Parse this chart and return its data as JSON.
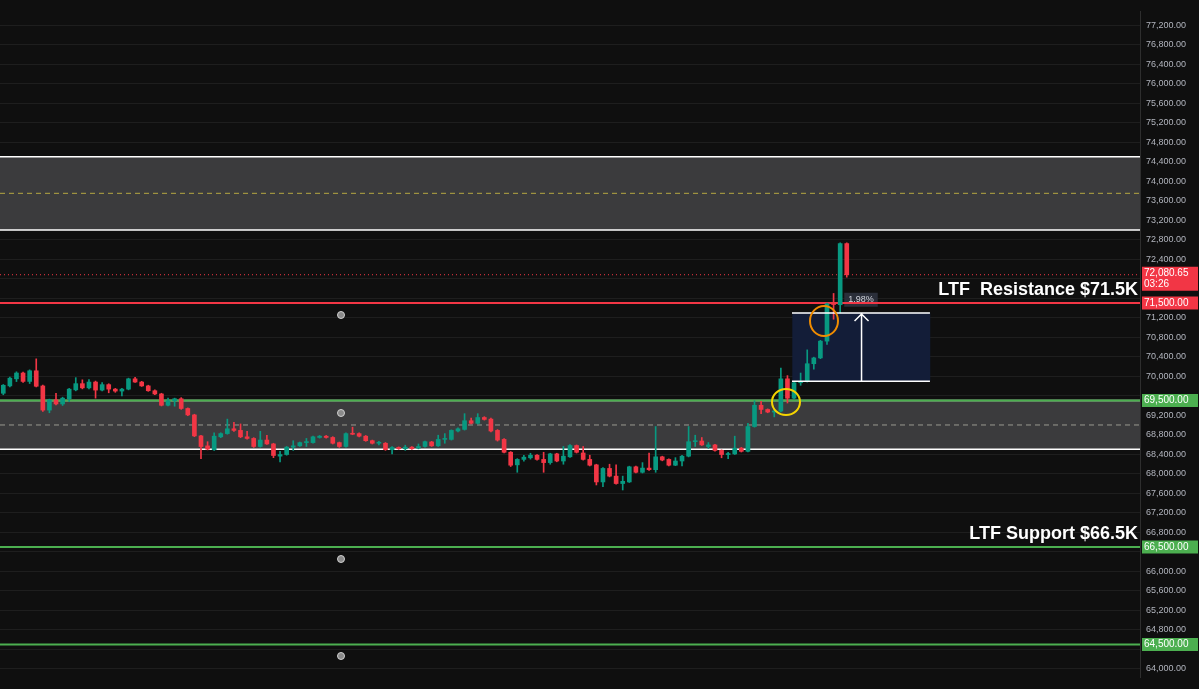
{
  "chart_data": {
    "type": "candlestick",
    "categories": [
      null,
      null,
      null,
      null,
      null,
      null,
      null,
      null,
      null,
      null,
      null,
      null,
      null,
      null,
      null,
      null,
      null,
      null,
      null,
      null,
      null,
      null,
      null,
      null,
      null,
      null,
      null,
      null,
      null,
      null,
      null,
      null,
      null,
      null,
      null,
      null,
      null,
      null,
      null,
      null,
      null,
      null,
      null,
      null,
      null,
      null,
      null,
      null,
      null,
      null,
      null,
      null,
      null,
      null,
      null,
      null,
      null,
      null,
      null,
      null,
      null,
      null,
      null,
      null,
      null,
      null,
      null,
      null,
      null,
      null,
      null,
      null,
      null,
      null,
      null,
      null,
      null,
      null,
      null,
      null,
      null,
      null,
      null,
      null,
      null,
      null,
      null,
      null,
      null,
      null,
      null,
      null,
      null,
      null,
      null,
      null,
      null,
      null,
      null,
      null,
      null,
      null,
      null,
      null,
      null,
      null,
      null,
      null,
      null,
      null,
      null,
      null,
      null,
      null,
      null,
      null,
      null,
      null,
      null,
      null,
      null,
      null,
      null,
      null,
      null,
      null,
      null,
      null,
      null,
      null,
      null,
      null,
      null,
      null,
      null,
      null,
      null,
      null,
      null,
      null,
      null,
      null,
      null,
      null,
      null,
      null,
      null,
      null,
      null,
      null,
      null,
      null,
      null,
      null,
      null,
      null,
      null,
      null,
      null,
      null,
      null,
      null,
      null,
      null,
      null,
      null,
      null,
      null,
      null,
      null,
      null,
      null,
      null
    ],
    "ohlc": [
      [
        69650,
        69830,
        69620,
        69814
      ],
      [
        69801,
        69980,
        69780,
        69959
      ],
      [
        69946,
        70090,
        69890,
        70065
      ],
      [
        70065,
        70085,
        69870,
        69893
      ],
      [
        69893,
        70130,
        69850,
        70111
      ],
      [
        70111,
        70356,
        69780,
        69794
      ],
      [
        69800,
        69820,
        69280,
        69305
      ],
      [
        69305,
        69530,
        69250,
        69516
      ],
      [
        69516,
        69650,
        69410,
        69431
      ],
      [
        69431,
        69570,
        69400,
        69550
      ],
      [
        69536,
        69750,
        69480,
        69735
      ],
      [
        69720,
        69970,
        69700,
        69847
      ],
      [
        69847,
        69926,
        69740,
        69761
      ],
      [
        69761,
        69930,
        69740,
        69880
      ],
      [
        69880,
        69900,
        69550,
        69715
      ],
      [
        69715,
        69870,
        69700,
        69827
      ],
      [
        69827,
        69845,
        69660,
        69735
      ],
      [
        69735,
        69750,
        69670,
        69695
      ],
      [
        69695,
        69750,
        69596,
        69735
      ],
      [
        69735,
        69960,
        69720,
        69946
      ],
      [
        69946,
        69979,
        69870,
        69880
      ],
      [
        69880,
        69895,
        69790,
        69801
      ],
      [
        69801,
        69815,
        69690,
        69702
      ],
      [
        69702,
        69720,
        69620,
        69636
      ],
      [
        69636,
        69650,
        69390,
        69404
      ],
      [
        69404,
        69550,
        69390,
        69497
      ],
      [
        69497,
        69550,
        69385,
        69537
      ],
      [
        69537,
        69560,
        69320,
        69338
      ],
      [
        69338,
        69350,
        69190,
        69206
      ],
      [
        69206,
        69220,
        68760,
        68776
      ],
      [
        68776,
        68790,
        68307,
        68558
      ],
      [
        68571,
        68657,
        68490,
        68505
      ],
      [
        68492,
        68840,
        68480,
        68770
      ],
      [
        68757,
        68840,
        68740,
        68823
      ],
      [
        68823,
        69120,
        68810,
        68922
      ],
      [
        68922,
        69054,
        68870,
        68889
      ],
      [
        68889,
        69021,
        68740,
        68757
      ],
      [
        68757,
        68870,
        68710,
        68724
      ],
      [
        68724,
        68740,
        68540,
        68559
      ],
      [
        68559,
        68870,
        68545,
        68691
      ],
      [
        68691,
        68790,
        68600,
        68611
      ],
      [
        68611,
        68625,
        68330,
        68374
      ],
      [
        68361,
        68460,
        68242,
        68394
      ],
      [
        68394,
        68560,
        68380,
        68545
      ],
      [
        68545,
        68677,
        68479,
        68572
      ],
      [
        68572,
        68650,
        68560,
        68638
      ],
      [
        68638,
        68724,
        68559,
        68658
      ],
      [
        68638,
        68770,
        68625,
        68757
      ],
      [
        68744,
        68785,
        68730,
        68770
      ],
      [
        68770,
        68785,
        68730,
        68744
      ],
      [
        68744,
        68760,
        68610,
        68625
      ],
      [
        68638,
        68650,
        68540,
        68559
      ],
      [
        68559,
        68840,
        68545,
        68823
      ],
      [
        68830,
        68955,
        68800,
        68810
      ],
      [
        68823,
        68840,
        68755,
        68770
      ],
      [
        68770,
        68785,
        68665,
        68678
      ],
      [
        68678,
        68690,
        68610,
        68625
      ],
      [
        68625,
        68665,
        68590,
        68638
      ],
      [
        68625,
        68640,
        68480,
        68493
      ],
      [
        68493,
        68555,
        68407,
        68539
      ],
      [
        68539,
        68550,
        68500,
        68512
      ],
      [
        68512,
        68585,
        68480,
        68545
      ],
      [
        68545,
        68555,
        68500,
        68512
      ],
      [
        68525,
        68610,
        68510,
        68559
      ],
      [
        68559,
        68670,
        68545,
        68658
      ],
      [
        68651,
        68665,
        68560,
        68572
      ],
      [
        68572,
        68790,
        68560,
        68704
      ],
      [
        68704,
        68823,
        68625,
        68724
      ],
      [
        68704,
        68900,
        68690,
        68889
      ],
      [
        68876,
        68940,
        68860,
        68922
      ],
      [
        68909,
        69232,
        68895,
        69087
      ],
      [
        69087,
        69140,
        69020,
        69034
      ],
      [
        69034,
        69232,
        69020,
        69153
      ],
      [
        69153,
        69170,
        69100,
        69114
      ],
      [
        69120,
        69140,
        68860,
        68876
      ],
      [
        68889,
        68905,
        68670,
        68691
      ],
      [
        68704,
        68720,
        68425,
        68440
      ],
      [
        68440,
        68455,
        68148,
        68175
      ],
      [
        68182,
        68310,
        68030,
        68294
      ],
      [
        68294,
        68380,
        68260,
        68340
      ],
      [
        68327,
        68420,
        68300,
        68380
      ],
      [
        68380,
        68395,
        68280,
        68294
      ],
      [
        68294,
        68440,
        68030,
        68228
      ],
      [
        68228,
        68420,
        68195,
        68407
      ],
      [
        68407,
        68420,
        68245,
        68261
      ],
      [
        68261,
        68559,
        68195,
        68360
      ],
      [
        68347,
        68600,
        68335,
        68578
      ],
      [
        68578,
        68590,
        68425,
        68440
      ],
      [
        68426,
        68559,
        68280,
        68294
      ],
      [
        68294,
        68380,
        68160,
        68175
      ],
      [
        68182,
        68195,
        67770,
        67832
      ],
      [
        67832,
        68125,
        67733,
        68109
      ],
      [
        68109,
        68195,
        67935,
        67951
      ],
      [
        67951,
        68182,
        67785,
        67799
      ],
      [
        67799,
        67951,
        67667,
        67845
      ],
      [
        67832,
        68155,
        67820,
        68142
      ],
      [
        68142,
        68155,
        68015,
        68030
      ],
      [
        68030,
        68228,
        68015,
        68116
      ],
      [
        68116,
        68426,
        68070,
        68083
      ],
      [
        68083,
        68968,
        68030,
        68347
      ],
      [
        68347,
        68360,
        68265,
        68281
      ],
      [
        68294,
        68305,
        68160,
        68175
      ],
      [
        68175,
        68330,
        68165,
        68261
      ],
      [
        68261,
        68375,
        68162,
        68360
      ],
      [
        68360,
        68968,
        68345,
        68657
      ],
      [
        68657,
        68790,
        68559,
        68671
      ],
      [
        68671,
        68743,
        68580,
        68591
      ],
      [
        68558,
        68640,
        68520,
        68591
      ],
      [
        68591,
        68605,
        68465,
        68479
      ],
      [
        68479,
        68490,
        68327,
        68393
      ],
      [
        68393,
        68440,
        68307,
        68413
      ],
      [
        68406,
        68770,
        68395,
        68525
      ],
      [
        68525,
        68540,
        68445,
        68459
      ],
      [
        68459,
        69034,
        68445,
        68968
      ],
      [
        68968,
        69497,
        68955,
        69404
      ],
      [
        69404,
        69483,
        69232,
        69318
      ],
      [
        69318,
        69330,
        69250,
        69265
      ],
      [
        69265,
        69300,
        69166,
        69285
      ],
      [
        69285,
        70164,
        69270,
        69946
      ],
      [
        69946,
        70012,
        69450,
        69549
      ],
      [
        69549,
        69880,
        69535,
        69866
      ],
      [
        69866,
        70065,
        69814,
        69893
      ],
      [
        69893,
        70540,
        69880,
        70256
      ],
      [
        70256,
        70390,
        70144,
        70375
      ],
      [
        70375,
        70735,
        70360,
        70719
      ],
      [
        70719,
        71500,
        70650,
        71485
      ],
      [
        71485,
        71697,
        71168,
        71470
      ],
      [
        71465,
        72735,
        71300,
        72721
      ],
      [
        72721,
        72735,
        72030,
        72081
      ],
      null,
      null,
      null,
      null,
      null,
      null,
      null,
      null,
      null,
      null,
      null,
      null,
      null,
      null,
      null,
      null,
      null,
      null,
      null,
      null,
      null,
      null,
      null,
      null,
      null,
      null,
      null,
      null,
      null,
      null,
      null,
      null,
      null,
      null,
      null,
      null,
      null,
      null,
      null,
      null,
      null,
      null,
      null,
      null
    ],
    "colors": [
      "#089981",
      "#089981",
      "#089981",
      "#f23645",
      "#089981",
      "#f23645",
      "#f23645",
      "#089981",
      "#f23645",
      "#089981",
      "#089981",
      "#089981",
      "#f23645",
      "#089981",
      "#f23645",
      "#089981",
      "#f23645",
      "#f23645",
      "#089981",
      "#089981",
      "#f23645",
      "#f23645",
      "#f23645",
      "#f23645",
      "#f23645",
      "#089981",
      "#089981",
      "#f23645",
      "#f23645",
      "#f23645",
      "#f23645",
      "#f23645",
      "#089981",
      "#089981",
      "#089981",
      "#f23645",
      "#f23645",
      "#f23645",
      "#f23645",
      "#089981",
      "#f23645",
      "#f23645",
      "#089981",
      "#089981",
      "#089981",
      "#089981",
      "#089981",
      "#089981",
      "#089981",
      "#f23645",
      "#f23645",
      "#f23645",
      "#089981",
      "#f23645",
      "#f23645",
      "#f23645",
      "#f23645",
      "#089981",
      "#f23645",
      "#089981",
      "#f23645",
      "#089981",
      "#f23645",
      "#089981",
      "#089981",
      "#f23645",
      "#089981",
      "#089981",
      "#089981",
      "#089981",
      "#089981",
      "#f23645",
      "#089981",
      "#f23645",
      "#f23645",
      "#f23645",
      "#f23645",
      "#f23645",
      "#089981",
      "#089981",
      "#089981",
      "#f23645",
      "#f23645",
      "#089981",
      "#f23645",
      "#089981",
      "#089981",
      "#f23645",
      "#f23645",
      "#f23645",
      "#f23645",
      "#089981",
      "#f23645",
      "#f23645",
      "#089981",
      "#089981",
      "#f23645",
      "#089981",
      "#f23645",
      "#089981",
      "#f23645",
      "#f23645",
      "#089981",
      "#089981",
      "#089981",
      "#089981",
      "#f23645",
      "#089981",
      "#f23645",
      "#f23645",
      "#089981",
      "#089981",
      "#f23645",
      "#089981",
      "#089981",
      "#f23645",
      "#f23645",
      "#089981",
      "#089981",
      "#f23645",
      "#089981",
      "#089981",
      "#089981",
      "#089981",
      "#089981",
      "#089981",
      "#f23645",
      "#089981",
      "#f23645",
      null,
      null,
      null,
      null,
      null,
      null,
      null,
      null,
      null,
      null,
      null,
      null,
      null,
      null,
      null,
      null,
      null,
      null,
      null,
      null,
      null,
      null,
      null,
      null,
      null,
      null,
      null,
      null,
      null,
      null,
      null,
      null,
      null,
      null,
      null,
      null,
      null,
      null,
      null,
      null,
      null,
      null,
      null,
      null
    ],
    "annotations": [
      {
        "text": "LTF  Resistance $71.5K",
        "y": 71500
      },
      "03:26",
      {
        "text": "LTF Support $66.5K",
        "y": 66500
      }
    ],
    "ylim": [
      63820,
      77480
    ],
    "yticks": [
      {
        "value": 64000,
        "label": "64,000.00"
      },
      {
        "value": 64400,
        "label": null
      },
      {
        "value": 64800,
        "label": "64,800.00"
      },
      {
        "value": 65200,
        "label": "65,200.00"
      },
      {
        "value": 65600,
        "label": "65,600.00"
      },
      {
        "value": 66000,
        "label": "66,000.00"
      },
      {
        "value": 66400,
        "label": null
      },
      {
        "value": 66800,
        "label": "66,800.00"
      },
      {
        "value": 67200,
        "label": "67,200.00"
      },
      {
        "value": 67600,
        "label": "67,600.00"
      },
      {
        "value": 68000,
        "label": "68,000.00"
      },
      {
        "value": 68400,
        "label": "68,400.00"
      },
      {
        "value": 68800,
        "label": "68,800.00"
      },
      {
        "value": 69200,
        "label": "69,200.00"
      },
      {
        "value": 69600,
        "label": null
      },
      {
        "value": 70000,
        "label": "70,000.00"
      },
      {
        "value": 70400,
        "label": "70,400.00"
      },
      {
        "value": 70800,
        "label": "70,800.00"
      },
      {
        "value": 71200,
        "label": "71,200.00"
      },
      {
        "value": 71600,
        "label": null
      },
      {
        "value": 72000,
        "label": null
      },
      {
        "value": 72400,
        "label": "72,400.00"
      },
      {
        "value": 72800,
        "label": "72,800.00"
      },
      {
        "value": 73200,
        "label": "73,200.00"
      },
      {
        "value": 73600,
        "label": "73,600.00"
      },
      {
        "value": 74000,
        "label": "74,000.00"
      },
      {
        "value": 74400,
        "label": "74,400.00"
      },
      {
        "value": 74800,
        "label": "74,800.00"
      },
      {
        "value": 75200,
        "label": "75,200.00"
      },
      {
        "value": 75600,
        "label": "75,600.00"
      },
      {
        "value": 76000,
        "label": "76,000.00"
      },
      {
        "value": 76400,
        "label": "76,400.00"
      },
      {
        "value": 76800,
        "label": "76,800.00"
      },
      {
        "value": 77200,
        "label": "77,200.00"
      }
    ],
    "bands": [
      {
        "axis": "y",
        "from": 73000,
        "to": 74500,
        "color": "#3b3b3d"
      },
      {
        "axis": "y",
        "from": 68500,
        "to": 69500,
        "color": "#3b3b3d"
      },
      {
        "axis": "y",
        "from": 69900,
        "to": 71300,
        "label": "1.98%",
        "color": "#131d38"
      }
    ],
    "ref_lines": [
      {
        "axis": "y",
        "value": 73750,
        "color": "#b5a642",
        "line_style": "dashed"
      },
      {
        "axis": "y",
        "value": 69000,
        "color": "#9a9a90",
        "line_style": "dashed"
      },
      {
        "axis": "y",
        "value": 71500,
        "label": "71,500.00",
        "color": "#f23645",
        "line_style": "solid"
      },
      {
        "axis": "y",
        "value": 72080.65,
        "label": "72,080.65",
        "color": "#f23645",
        "line_style": "dotted"
      },
      {
        "axis": "y",
        "value": 69500,
        "label": "69,500.00",
        "color": "#4caf50",
        "line_style": "solid"
      },
      {
        "axis": "y",
        "value": 66500,
        "label": "66,500.00",
        "color": "#4caf50",
        "line_style": "solid"
      },
      {
        "axis": "y",
        "value": 64500,
        "label": "64,500.00",
        "color": "#4caf50",
        "line_style": "solid"
      }
    ],
    "grid": "y",
    "legend": false,
    "tick_labels": "y"
  }
}
